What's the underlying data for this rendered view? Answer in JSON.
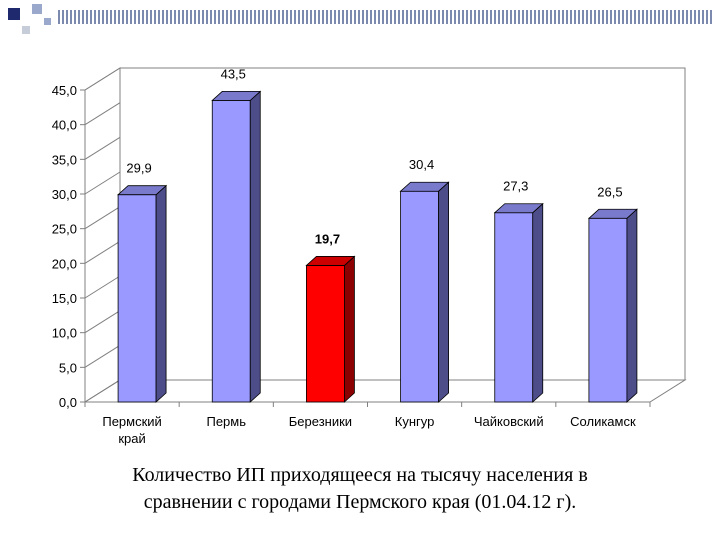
{
  "chart_data": {
    "type": "bar",
    "categories": [
      [
        "Пермский",
        "край"
      ],
      [
        "Пермь"
      ],
      [
        "Березники"
      ],
      [
        "Кунгур"
      ],
      [
        "Чайковский"
      ],
      [
        "Соликамск"
      ]
    ],
    "values": [
      29.9,
      43.5,
      19.7,
      30.4,
      27.3,
      26.5
    ],
    "data_labels": [
      "29,9",
      "43,5",
      "19,7",
      "30,4",
      "27,3",
      "26,5"
    ],
    "highlight_index": 2,
    "ylim": [
      0,
      45
    ],
    "yticks": [
      "0,0",
      "5,0",
      "10,0",
      "15,0",
      "20,0",
      "25,0",
      "30,0",
      "35,0",
      "40,0",
      "45,0"
    ],
    "grid": false,
    "legend": "none",
    "colors": {
      "bar_front": "#9999ff",
      "bar_side": "#4d4d8a",
      "bar_top": "#7a7acc",
      "highlight_front": "#ff0000",
      "highlight_side": "#8b0000",
      "highlight_top": "#cc0000",
      "wall": "#ffffff",
      "axis": "#808080"
    }
  },
  "caption": {
    "line1": "Количество ИП приходящееся на тысячу населения в",
    "line2": "сравнении с городами Пермского края (01.04.12 г)."
  },
  "decoration": {
    "square_colors": [
      "#1f2a6e",
      "#9aa8cc",
      "#c7ccd9"
    ],
    "stripe_color": "#7d8ab0"
  }
}
